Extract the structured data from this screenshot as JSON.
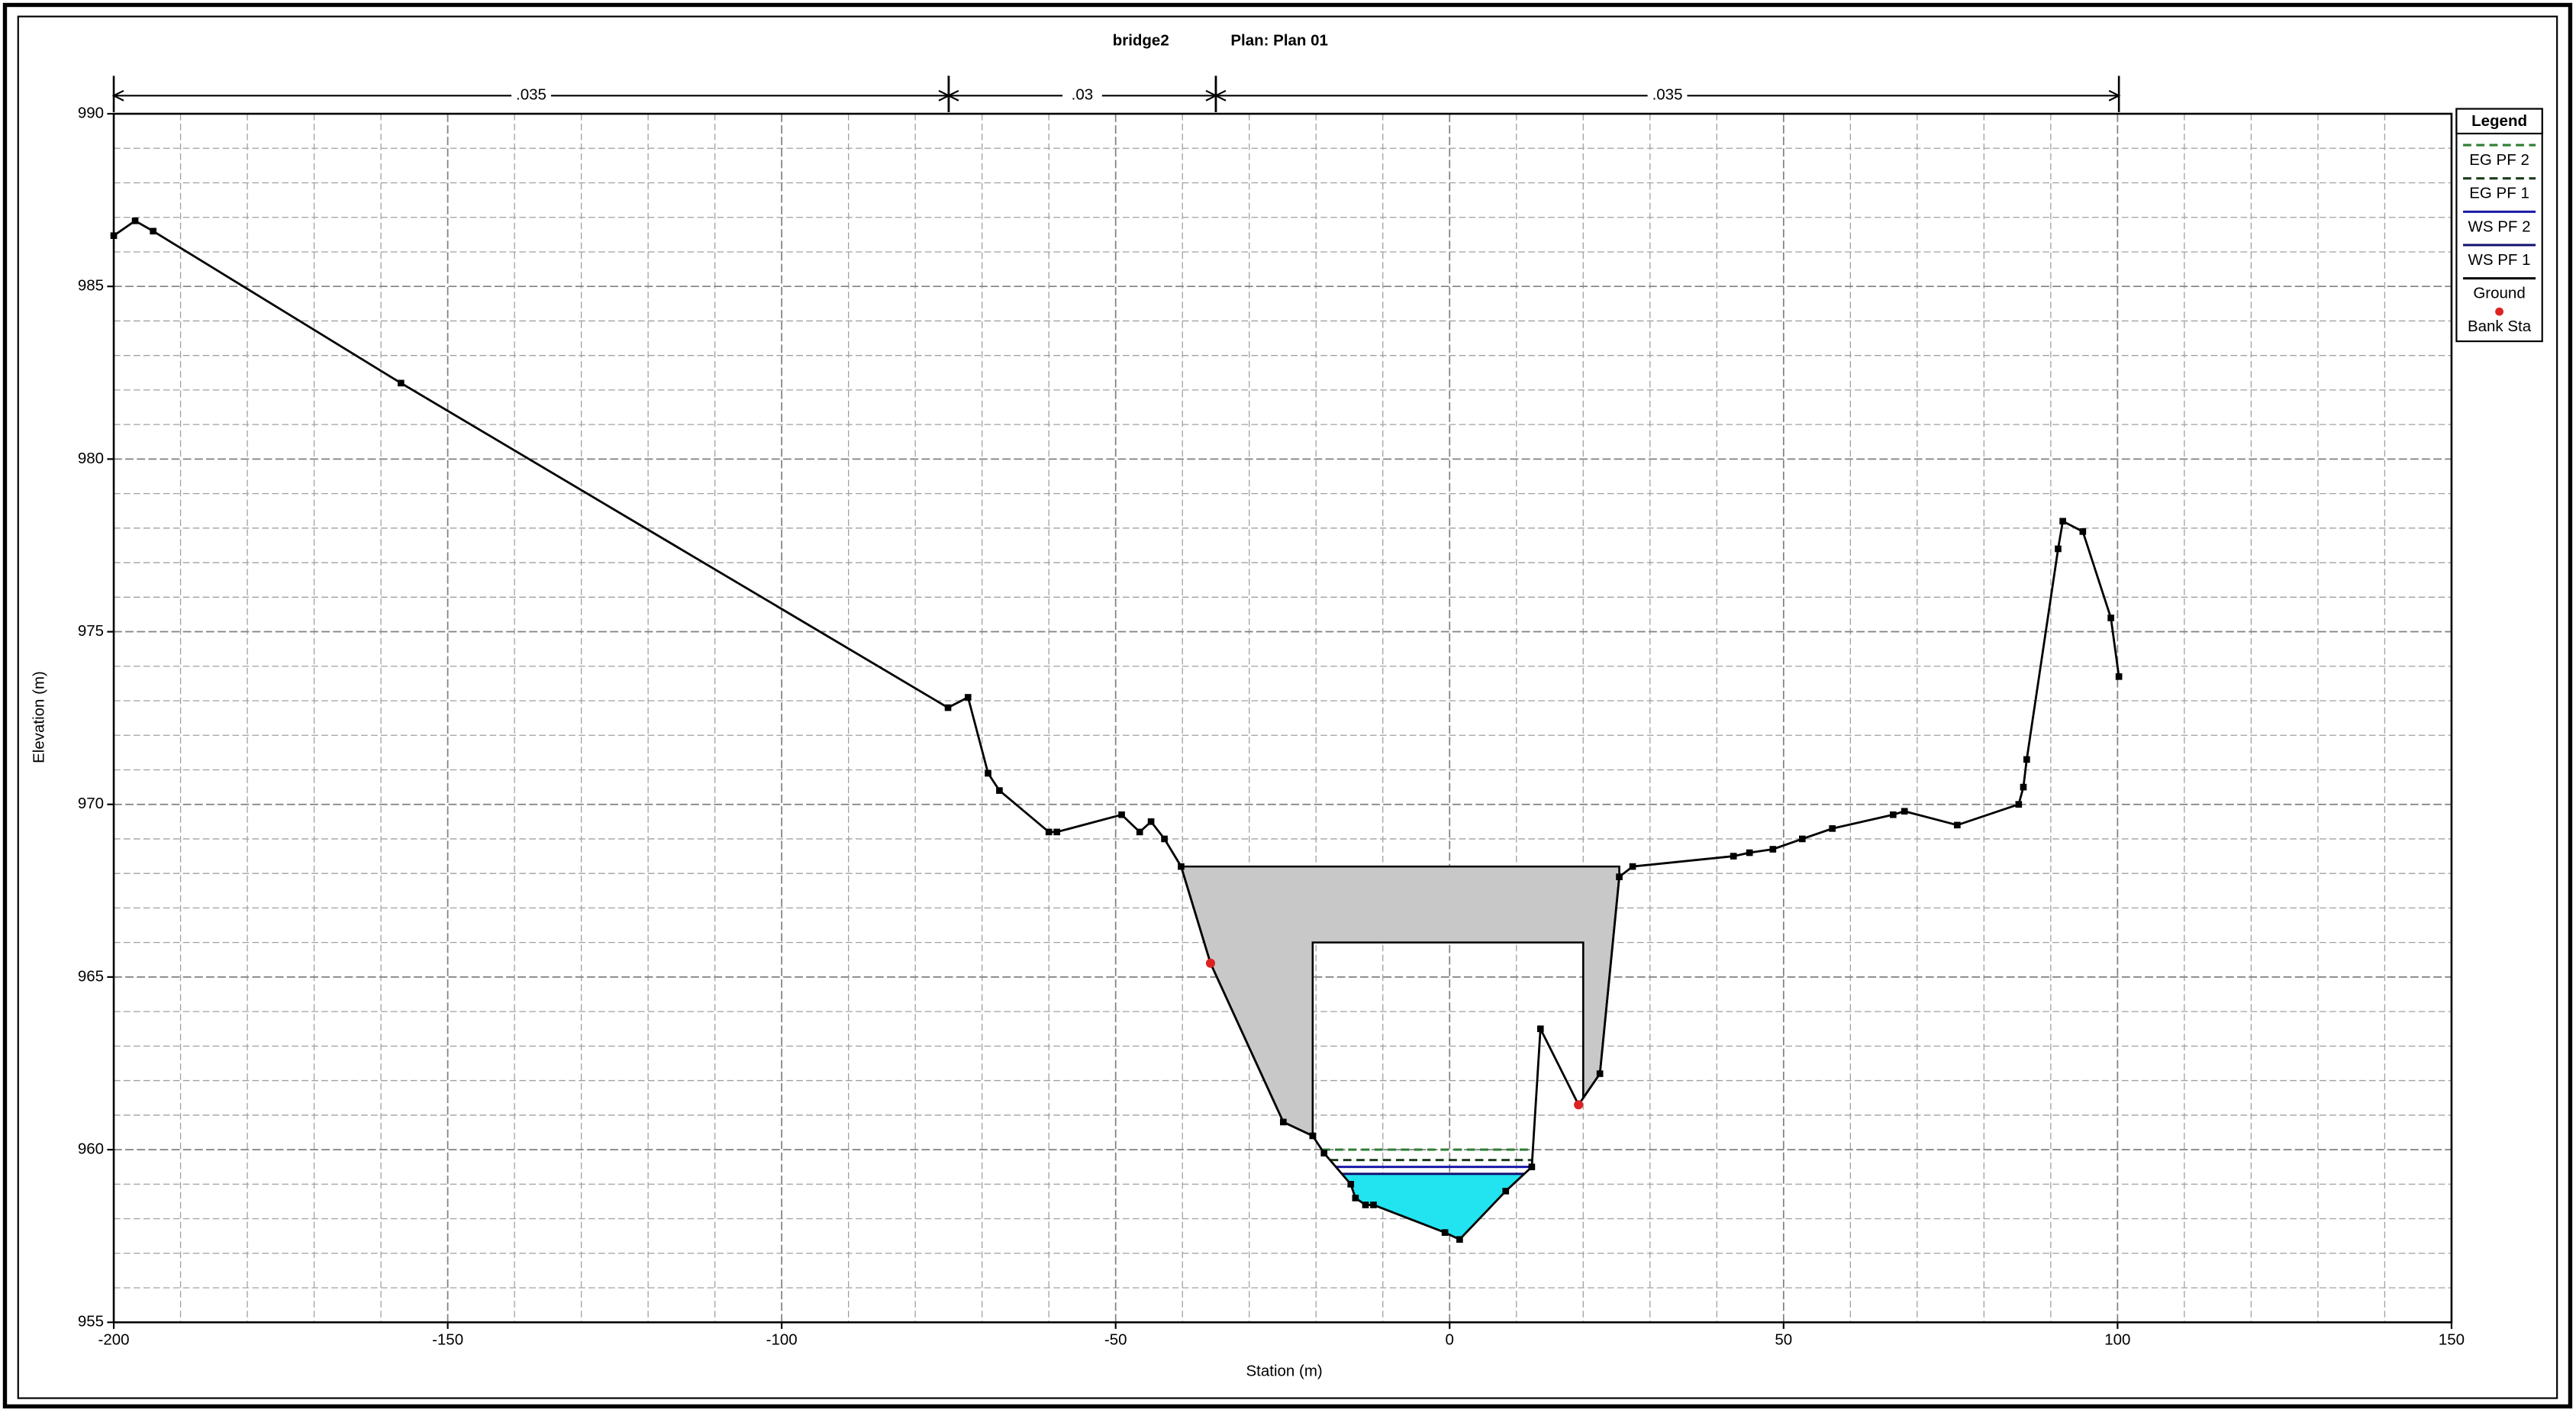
{
  "chart_data": {
    "type": "line",
    "title": "bridge2",
    "plan": "Plan: Plan 01",
    "x_label": "Station (m)",
    "y_label": "Elevation (m)",
    "xlim": [
      -200,
      150
    ],
    "xticks": [
      -200,
      -150,
      -100,
      -50,
      0,
      50,
      100,
      150
    ],
    "ylim": [
      955,
      990
    ],
    "yticks": [
      955,
      960,
      965,
      970,
      975,
      980,
      985,
      990
    ],
    "grid": true,
    "legend": "right",
    "legend_title": "Legend",
    "mannings_n": [
      {
        "label": ".035",
        "x": [
          -200,
          -75
        ]
      },
      {
        "label": ".03",
        "x": [
          -75,
          -35
        ]
      },
      {
        "label": ".035",
        "x": [
          -35,
          100.2
        ]
      }
    ],
    "water": [
      {
        "name": "EG PF 2",
        "color": "#2e7d32",
        "dash": true,
        "value": 960.0
      },
      {
        "name": "EG PF 1",
        "color": "#1b3d1b",
        "dash": true,
        "value": 959.7
      },
      {
        "name": "WS PF 2",
        "color": "#1a1aa8",
        "dash": false,
        "value": 959.5
      },
      {
        "name": "WS PF 1",
        "color": "#101070",
        "dash": false,
        "value": 959.3,
        "fill": "#22e4f0"
      }
    ],
    "ground": {
      "name": "Ground",
      "color": "#000000",
      "x": [
        -200,
        -196.8,
        -194.1,
        -157.0,
        -75.1,
        -72.1,
        -69.1,
        -67.4,
        -60.0,
        -58.8,
        -49.1,
        -46.4,
        -44.7,
        -42.7,
        -40.2,
        -35.8,
        -24.9,
        -20.5,
        -18.8,
        -14.8,
        -14.1,
        -12.6,
        -11.4,
        -0.7,
        1.5,
        8.4,
        12.3,
        13.6,
        19.3,
        22.5,
        25.4,
        27.4,
        42.5,
        44.9,
        48.4,
        52.8,
        57.3,
        66.4,
        68.1,
        76.0,
        85.2,
        85.9,
        86.4,
        91.1,
        91.8,
        94.8,
        99.0,
        100.2
      ],
      "values": [
        986.47,
        986.9,
        986.6,
        982.2,
        972.8,
        973.1,
        970.9,
        970.4,
        969.2,
        969.2,
        969.7,
        969.2,
        969.5,
        969.0,
        968.2,
        965.4,
        960.8,
        960.4,
        959.9,
        959.0,
        958.6,
        958.4,
        958.4,
        957.6,
        957.4,
        958.8,
        959.5,
        963.5,
        961.3,
        962.2,
        967.9,
        968.2,
        968.5,
        968.6,
        968.7,
        969.0,
        969.3,
        969.7,
        969.8,
        969.4,
        970.0,
        970.5,
        971.3,
        977.4,
        978.2,
        977.9,
        975.4,
        973.7
      ]
    },
    "bank_stations": {
      "name": "Bank Sta",
      "color": "#dd2222",
      "x": [
        -35.8,
        19.3
      ],
      "values": [
        965.4,
        961.3
      ]
    },
    "bridge": {
      "color": "#c8c8c8",
      "x": [
        -40.2,
        25.4
      ],
      "high_chord": 968.2,
      "low_chord": 966.0,
      "opening": [
        -20.5,
        20.0
      ]
    }
  }
}
